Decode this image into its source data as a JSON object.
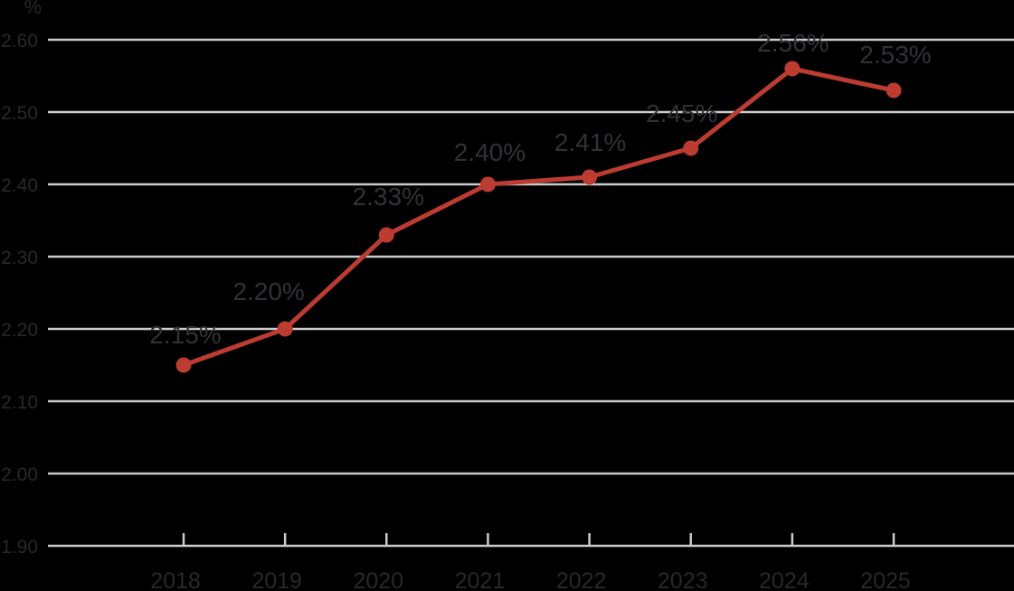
{
  "chart_data": {
    "type": "line",
    "title": "",
    "categories": [
      "2018",
      "2019",
      "2020",
      "2021",
      "2022",
      "2023",
      "2024",
      "2025"
    ],
    "values": [
      2.15,
      2.2,
      2.33,
      2.4,
      2.41,
      2.45,
      2.56,
      2.53
    ],
    "point_labels": [
      "2.15%",
      "2.20%",
      "2.33%",
      "2.40%",
      "2.41%",
      "2.45%",
      "2.56%",
      "2.53%"
    ],
    "xlabel": "",
    "ylabel": "%",
    "ylim": [
      1.9,
      2.6
    ],
    "ytick_step": 0.1,
    "ytick_format_decimals": 2,
    "grid": true,
    "legend": "none",
    "colors": {
      "line": "#bc3c31",
      "marker": "#bc3c31",
      "grid": "#cbcbcb",
      "axis_text": "#28282b",
      "label_text": "#323236",
      "background": "#000000"
    },
    "layout": {
      "point_label_dx": [
        2,
        -18,
        2,
        2,
        1,
        -10,
        1,
        2
      ],
      "point_label_dy": [
        -24,
        -32,
        -33,
        -26,
        -29,
        -29,
        -19,
        -30
      ]
    }
  }
}
